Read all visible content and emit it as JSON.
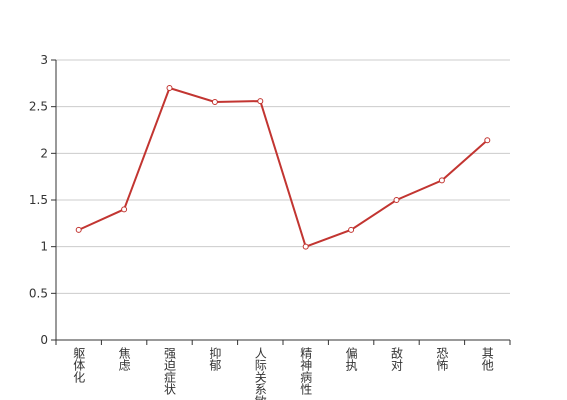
{
  "chart_data": {
    "type": "line",
    "categories": [
      "躯体化",
      "焦虑",
      "强迫症状",
      "抑郁",
      "人际关系敏感",
      "精神病性",
      "偏执",
      "敌对",
      "恐怖",
      "其他"
    ],
    "series": [
      {
        "color": "#c23531",
        "values": [
          1.18,
          1.4,
          2.7,
          2.55,
          2.56,
          1.0,
          1.18,
          1.5,
          1.71,
          2.14
        ]
      }
    ],
    "ylim": [
      0,
      3
    ],
    "yticks": [
      0,
      0.5,
      1,
      1.5,
      2,
      2.5,
      3
    ],
    "grid": true
  }
}
